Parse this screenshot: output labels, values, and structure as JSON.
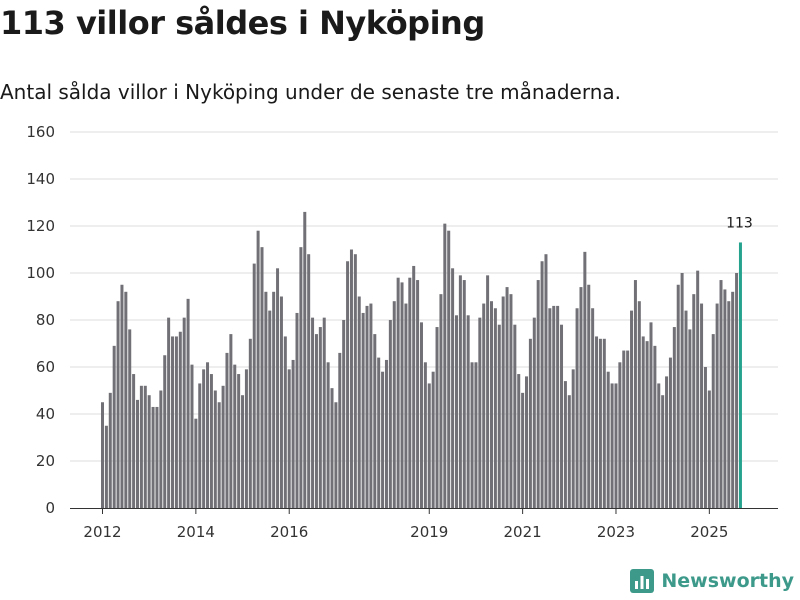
{
  "page": {
    "title": "113 villor såldes i Nyköping",
    "subtitle": "Antal sålda villor i Nyköping under de senaste tre månaderna.",
    "brand": "Newsworthy"
  },
  "colors": {
    "bar": "#707076",
    "highlight": "#26a38f",
    "grid": "#dcdcdc",
    "axis": "#333333",
    "brand": "#3d9a8b"
  },
  "chart_data": {
    "type": "bar",
    "title": "113 villor såldes i Nyköping",
    "subtitle": "Antal sålda villor i Nyköping under de senaste tre månaderna.",
    "xlabel": "",
    "ylabel": "",
    "ylim": [
      0,
      160
    ],
    "yticks": [
      0,
      20,
      40,
      60,
      80,
      100,
      120,
      140,
      160
    ],
    "grid": true,
    "x_start_year": 2012,
    "x_start_month": 1,
    "xticks": [
      2012,
      2014,
      2016,
      2019,
      2021,
      2023,
      2025
    ],
    "annotation": {
      "label": "113",
      "index": 164
    },
    "values": [
      45,
      35,
      49,
      69,
      88,
      95,
      92,
      76,
      57,
      46,
      52,
      52,
      48,
      43,
      43,
      50,
      65,
      81,
      73,
      73,
      75,
      81,
      89,
      61,
      38,
      53,
      59,
      62,
      57,
      50,
      45,
      52,
      66,
      74,
      61,
      57,
      48,
      59,
      72,
      104,
      118,
      111,
      92,
      84,
      92,
      102,
      90,
      73,
      59,
      63,
      83,
      111,
      126,
      108,
      81,
      74,
      77,
      81,
      62,
      51,
      45,
      66,
      80,
      105,
      110,
      108,
      90,
      83,
      86,
      87,
      74,
      64,
      58,
      63,
      80,
      88,
      98,
      96,
      87,
      98,
      103,
      97,
      79,
      62,
      53,
      58,
      77,
      91,
      121,
      118,
      102,
      82,
      99,
      97,
      82,
      62,
      62,
      81,
      87,
      99,
      88,
      85,
      78,
      90,
      94,
      91,
      78,
      57,
      49,
      56,
      72,
      81,
      97,
      105,
      108,
      85,
      86,
      86,
      78,
      54,
      48,
      59,
      85,
      94,
      109,
      95,
      85,
      73,
      72,
      72,
      58,
      53,
      53,
      62,
      67,
      67,
      84,
      97,
      88,
      73,
      71,
      79,
      69,
      53,
      48,
      56,
      64,
      77,
      95,
      100,
      84,
      76,
      91,
      101,
      87,
      60,
      50,
      74,
      87,
      97,
      93,
      88,
      92,
      100,
      113
    ]
  }
}
